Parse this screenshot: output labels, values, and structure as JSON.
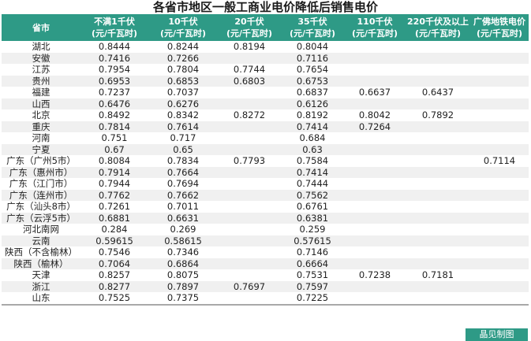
{
  "title": "各省市地区一般工商业电价降低后销售电价",
  "headers": [
    {
      "line1": "省市",
      "line2": ""
    },
    {
      "line1": "不满1千伏",
      "line2": "(元/千瓦时)"
    },
    {
      "line1": "10千伏",
      "line2": "(元/千瓦时)"
    },
    {
      "line1": "20千伏",
      "line2": "(元/千瓦时)"
    },
    {
      "line1": "35千伏",
      "line2": "(元/千瓦时)"
    },
    {
      "line1": "110千伏",
      "line2": "(元/千瓦时)"
    },
    {
      "line1": "220千伏及以上",
      "line2": "(元/千瓦时)"
    },
    {
      "line1": "广佛地铁电价",
      "line2": "(元/千瓦时)"
    }
  ],
  "rows": [
    [
      "湖北",
      "0.8444",
      "0.8244",
      "0.8194",
      "0.8044",
      "",
      "",
      ""
    ],
    [
      "安徽",
      "0.7416",
      "0.7266",
      "",
      "0.7116",
      "",
      "",
      ""
    ],
    [
      "江苏",
      "0.7954",
      "0.7804",
      "0.7744",
      "0.7654",
      "",
      "",
      ""
    ],
    [
      "贵州",
      "0.6953",
      "0.6853",
      "0.6803",
      "0.6753",
      "",
      "",
      ""
    ],
    [
      "福建",
      "0.7237",
      "0.7037",
      "",
      "0.6837",
      "0.6637",
      "0.6437",
      ""
    ],
    [
      "山西",
      "0.6476",
      "0.6276",
      "",
      "0.6126",
      "",
      "",
      ""
    ],
    [
      "北京",
      "0.8492",
      "0.8342",
      "0.8272",
      "0.8192",
      "0.8042",
      "0.7892",
      ""
    ],
    [
      "重庆",
      "0.7814",
      "0.7614",
      "",
      "0.7414",
      "0.7264",
      "",
      ""
    ],
    [
      "河南",
      "0.751",
      "0.717",
      "",
      "0.684",
      "",
      "",
      ""
    ],
    [
      "宁夏",
      "0.67",
      "0.65",
      "",
      "0.63",
      "",
      "",
      ""
    ],
    [
      "广东（广州5市）",
      "0.8084",
      "0.7834",
      "0.7793",
      "0.7584",
      "",
      "",
      "0.7114"
    ],
    [
      "广东（惠州市）",
      "0.7914",
      "0.7664",
      "",
      "0.7414",
      "",
      "",
      ""
    ],
    [
      "广东（江门市）",
      "0.7944",
      "0.7694",
      "",
      "0.7444",
      "",
      "",
      ""
    ],
    [
      "广东（连州市）",
      "0.7762",
      "0.7662",
      "",
      "0.7562",
      "",
      "",
      ""
    ],
    [
      "广东（汕头8市）",
      "0.7261",
      "0.7011",
      "",
      "0.6761",
      "",
      "",
      ""
    ],
    [
      "广东（云浮5市）",
      "0.6881",
      "0.6631",
      "",
      "0.6381",
      "",
      "",
      ""
    ],
    [
      "河北南网",
      "0.284",
      "0.269",
      "",
      "0.259",
      "",
      "",
      ""
    ],
    [
      "云南",
      "0.59615",
      "0.58615",
      "",
      "0.57615",
      "",
      "",
      ""
    ],
    [
      "陕西（不含榆林）",
      "0.7546",
      "0.7346",
      "",
      "0.7146",
      "",
      "",
      ""
    ],
    [
      "陕西（榆林）",
      "0.7064",
      "0.6864",
      "",
      "0.6664",
      "",
      "",
      ""
    ],
    [
      "天津",
      "0.8257",
      "0.8075",
      "",
      "0.7531",
      "0.7238",
      "0.7181",
      ""
    ],
    [
      "浙江",
      "0.8277",
      "0.7897",
      "0.7697",
      "0.7597",
      "",
      "",
      ""
    ],
    [
      "山东",
      "0.7525",
      "0.7375",
      "",
      "0.7225",
      "",
      "",
      ""
    ]
  ],
  "credit": "晶见制图",
  "colors": {
    "header_bg": "#2e9a86",
    "header_text": "#ffffff",
    "stripe": "#f0f0f0"
  }
}
